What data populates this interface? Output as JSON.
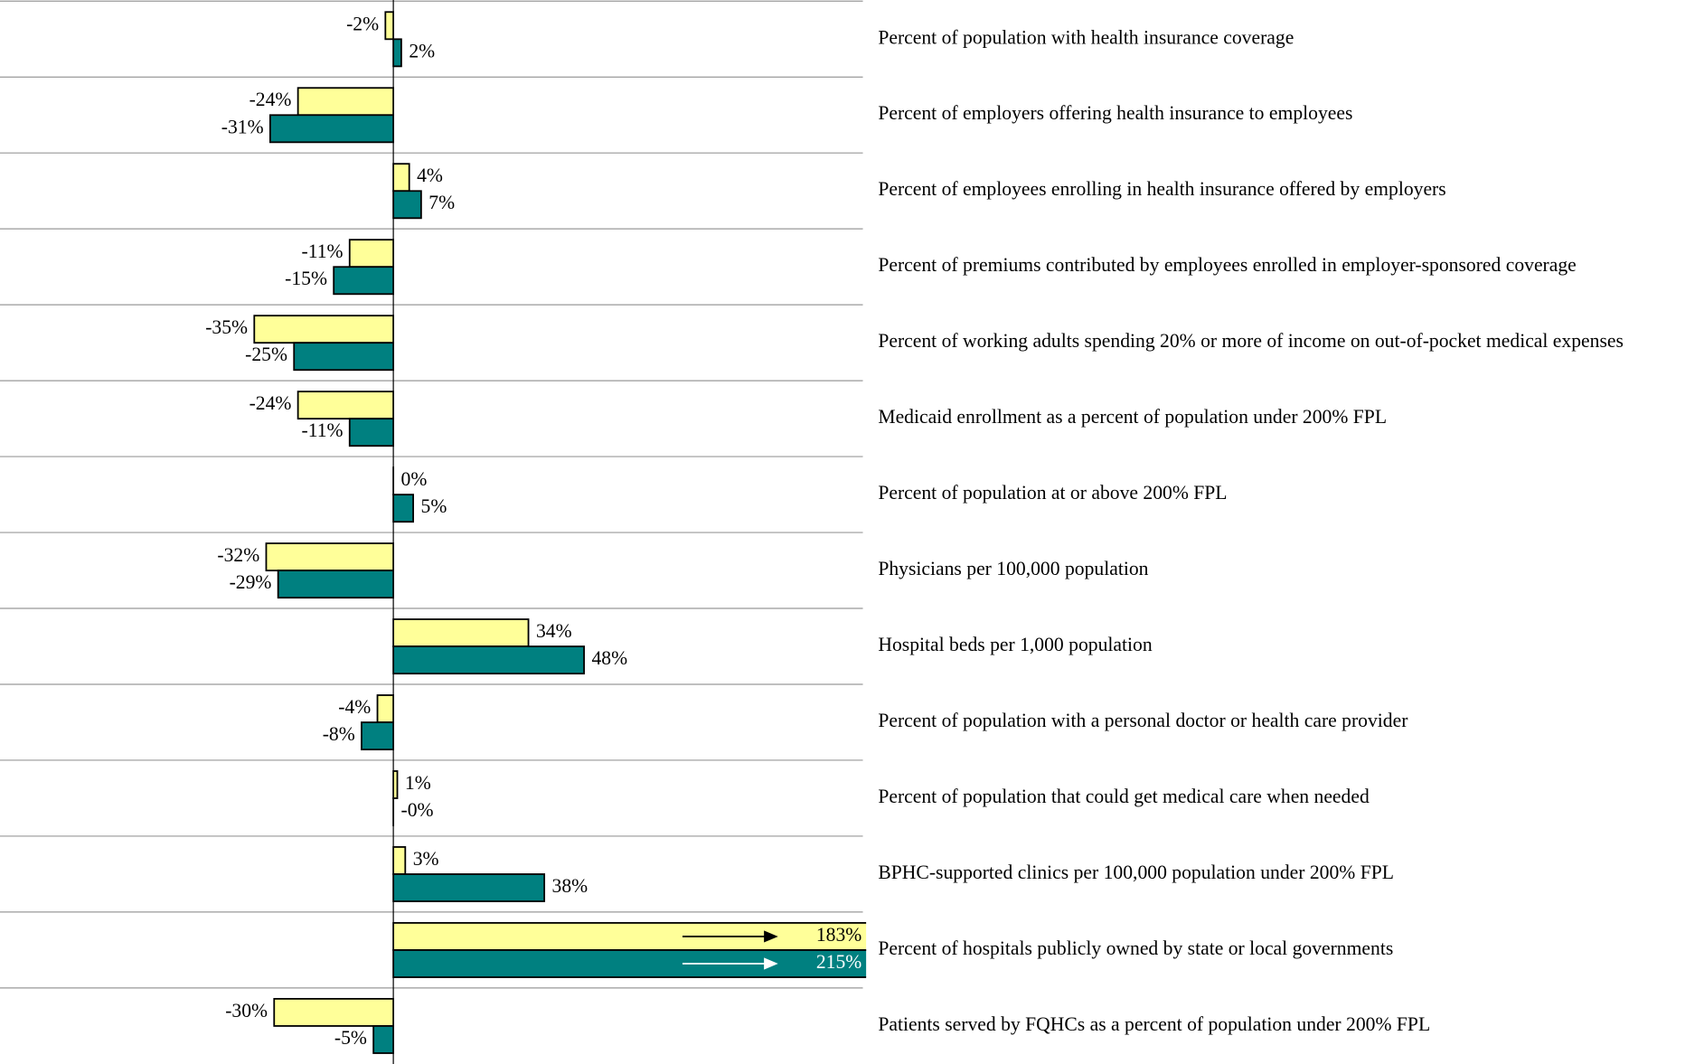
{
  "chart_data": {
    "type": "hbar",
    "categories": [
      "Percent of population with health insurance coverage",
      "Percent of employers offering health insurance to employees",
      "Percent of employees enrolling in health insurance offered by employers",
      "Percent of premiums contributed by employees enrolled in employer-sponsored coverage",
      "Percent of working adults spending 20% or more of income on out-of-pocket medical expenses",
      "Medicaid enrollment as a percent of population under 200% FPL",
      "Percent of population at or above 200% FPL",
      "Physicians per 100,000 population",
      "Hospital beds per 1,000 population",
      "Percent of population with a personal doctor or health care provider",
      "Percent of population that could get medical care when needed",
      "BPHC-supported clinics per 100,000 population under 200% FPL",
      "Percent of hospitals publicly owned by state or local governments",
      "Patients served by FQHCs as a percent of population under 200% FPL"
    ],
    "series": [
      {
        "color": "#ffff99",
        "values": [
          -2,
          -24,
          4,
          -11,
          -35,
          -24,
          0,
          -32,
          34,
          -4,
          1,
          3,
          183,
          -30
        ],
        "value_labels": [
          "-2%",
          "-24%",
          "4%",
          "-11%",
          "-35%",
          "-24%",
          "0%",
          "-32%",
          "34%",
          "-4%",
          "1%",
          "3%",
          "183%",
          "-30%"
        ]
      },
      {
        "color": "#008080",
        "values": [
          2,
          -31,
          7,
          -15,
          -25,
          -11,
          5,
          -29,
          48,
          -8,
          0,
          38,
          215,
          -5
        ],
        "value_labels": [
          "2%",
          "-31%",
          "7%",
          "-15%",
          "-25%",
          "-11%",
          "5%",
          "-29%",
          "48%",
          "-8%",
          "-0%",
          "38%",
          "215%",
          "-5%"
        ]
      }
    ],
    "xlim": [
      -99,
      119
    ]
  }
}
